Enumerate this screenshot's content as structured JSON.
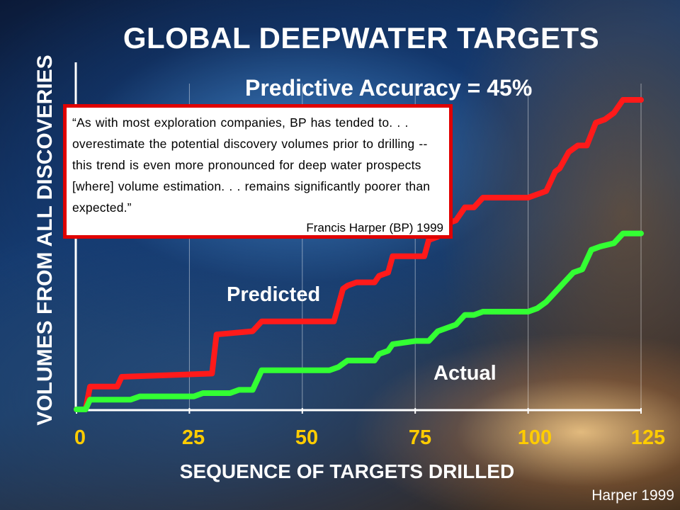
{
  "chart_data": {
    "type": "line",
    "title": "GLOBAL DEEPWATER TARGETS",
    "subtitle": "Predictive Accuracy = 45%",
    "xlabel": "SEQUENCE OF TARGETS DRILLED",
    "ylabel": "VOLUMES FROM ALL DISCOVERIES",
    "xlim": [
      0,
      125
    ],
    "ylim": [
      0,
      100
    ],
    "x_ticks": [
      "0",
      "25",
      "50",
      "75",
      "100",
      "125"
    ],
    "x_tick_values": [
      0,
      25,
      50,
      75,
      100,
      125
    ],
    "grid": "vertical",
    "series": [
      {
        "name": "Predicted",
        "color": "#ff1a1a",
        "points": [
          [
            0,
            0
          ],
          [
            2,
            0
          ],
          [
            3,
            7
          ],
          [
            9,
            7
          ],
          [
            10,
            10
          ],
          [
            30,
            11
          ],
          [
            31,
            23
          ],
          [
            39,
            24
          ],
          [
            41,
            27
          ],
          [
            57,
            27
          ],
          [
            59,
            37
          ],
          [
            60,
            38
          ],
          [
            62,
            39
          ],
          [
            66,
            39
          ],
          [
            67,
            41
          ],
          [
            69,
            42
          ],
          [
            70,
            47
          ],
          [
            77,
            47
          ],
          [
            78,
            52
          ],
          [
            80,
            53
          ],
          [
            82,
            57
          ],
          [
            84,
            58
          ],
          [
            86,
            62
          ],
          [
            88,
            62
          ],
          [
            90,
            65
          ],
          [
            100,
            65
          ],
          [
            102,
            66
          ],
          [
            104,
            67
          ],
          [
            106,
            73
          ],
          [
            107,
            74
          ],
          [
            109,
            79
          ],
          [
            111,
            81
          ],
          [
            113,
            81
          ],
          [
            115,
            88
          ],
          [
            117,
            89
          ],
          [
            119,
            91
          ],
          [
            121,
            95
          ],
          [
            125,
            95
          ]
        ]
      },
      {
        "name": "Actual",
        "color": "#33ff33",
        "points": [
          [
            0,
            0
          ],
          [
            2,
            0
          ],
          [
            3,
            3
          ],
          [
            12,
            3
          ],
          [
            14,
            4
          ],
          [
            26,
            4
          ],
          [
            28,
            5
          ],
          [
            34,
            5
          ],
          [
            36,
            6
          ],
          [
            39,
            6
          ],
          [
            41,
            12
          ],
          [
            56,
            12
          ],
          [
            58,
            13
          ],
          [
            60,
            15
          ],
          [
            66,
            15
          ],
          [
            67,
            17
          ],
          [
            69,
            18
          ],
          [
            70,
            20
          ],
          [
            75,
            21
          ],
          [
            78,
            21
          ],
          [
            80,
            24
          ],
          [
            82,
            25
          ],
          [
            84,
            26
          ],
          [
            86,
            29
          ],
          [
            88,
            29
          ],
          [
            90,
            30
          ],
          [
            100,
            30
          ],
          [
            102,
            31
          ],
          [
            104,
            33
          ],
          [
            106,
            36
          ],
          [
            108,
            39
          ],
          [
            110,
            42
          ],
          [
            112,
            43
          ],
          [
            114,
            49
          ],
          [
            116,
            50
          ],
          [
            119,
            51
          ],
          [
            121,
            54
          ],
          [
            125,
            54
          ]
        ]
      }
    ],
    "annotations": {
      "predicted_label": "Predicted",
      "actual_label": "Actual"
    }
  },
  "quote": {
    "text": "“As with most exploration companies, BP has tended to. . . overestimate the potential discovery volumes prior to drilling -- this trend is even more pronounced for deep water prospects [where] volume estimation. . . remains significantly poorer than expected.”",
    "attribution": "Francis Harper (BP) 1999"
  },
  "source": "Harper 1999"
}
